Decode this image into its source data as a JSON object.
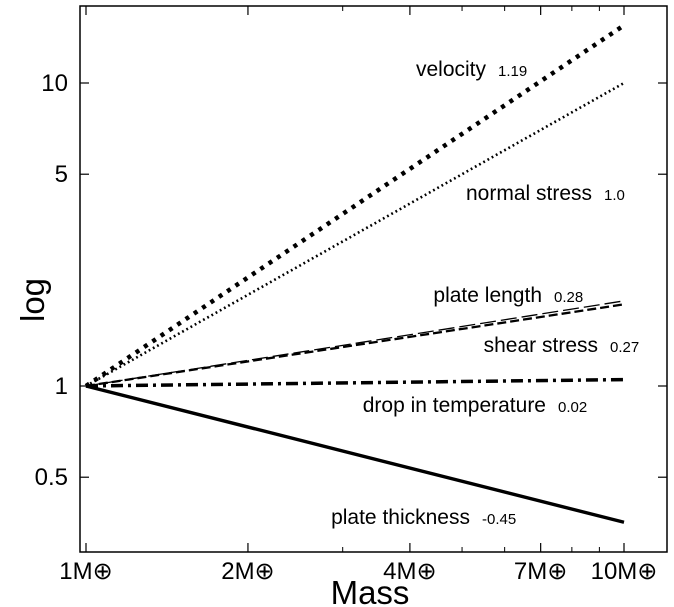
{
  "chart_data": {
    "type": "line",
    "title": "",
    "xlabel": "Mass",
    "ylabel": "log",
    "x_scale": "log",
    "y_scale": "log",
    "xlim": [
      1,
      10
    ],
    "ylim": [
      0.34,
      18
    ],
    "grid": false,
    "x_ticks": [
      {
        "value": 1,
        "label": "1M⊕"
      },
      {
        "value": 2,
        "label": "2M⊕"
      },
      {
        "value": 4,
        "label": "4M⊕"
      },
      {
        "value": 7,
        "label": "7M⊕"
      },
      {
        "value": 10,
        "label": "10M⊕"
      }
    ],
    "x_minor_ticks": [
      3,
      5,
      6,
      8,
      9
    ],
    "y_ticks": [
      {
        "value": 0.5,
        "label": "0.5"
      },
      {
        "value": 1,
        "label": "1"
      },
      {
        "value": 5,
        "label": "5"
      },
      {
        "value": 10,
        "label": "10"
      }
    ],
    "series": [
      {
        "name": "velocity",
        "slope_label": "1.19",
        "exponent": 1.19,
        "style": "dotted-thick",
        "x": [
          1,
          10
        ],
        "y": [
          1,
          15.5
        ]
      },
      {
        "name": "normal stress",
        "slope_label": "1.0",
        "exponent": 1.0,
        "style": "dotted-fine",
        "x": [
          1,
          10
        ],
        "y": [
          1,
          10
        ]
      },
      {
        "name": "plate length",
        "slope_label": "0.28",
        "exponent": 0.28,
        "style": "long-dash",
        "x": [
          1,
          10
        ],
        "y": [
          1,
          1.91
        ]
      },
      {
        "name": "shear stress",
        "slope_label": "0.27",
        "exponent": 0.27,
        "style": "dash",
        "x": [
          1,
          10
        ],
        "y": [
          1,
          1.86
        ]
      },
      {
        "name": "drop in temperature",
        "slope_label": "0.02",
        "exponent": 0.02,
        "style": "dash-dot",
        "x": [
          1,
          10
        ],
        "y": [
          1,
          1.05
        ]
      },
      {
        "name": "plate thickness",
        "slope_label": "-0.45",
        "exponent": -0.45,
        "style": "solid-thick",
        "x": [
          1,
          10
        ],
        "y": [
          1,
          0.355
        ]
      }
    ]
  }
}
